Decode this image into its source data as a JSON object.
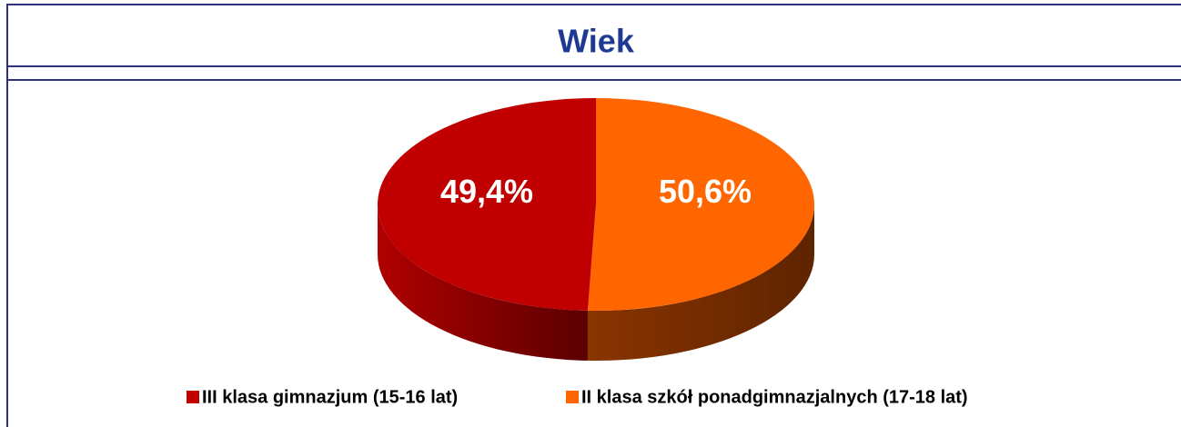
{
  "chart_data": {
    "type": "pie",
    "title": "Wiek",
    "categories": [
      "III klasa gimnazjum (15-16 lat)",
      "II klasa szkół ponadgimnazjalnych (17-18 lat)"
    ],
    "values": [
      49.4,
      50.6
    ],
    "value_labels": [
      "49,4%",
      "50,6%"
    ],
    "colors": [
      "#c00000",
      "#ff6600"
    ],
    "legend": "bottom"
  }
}
